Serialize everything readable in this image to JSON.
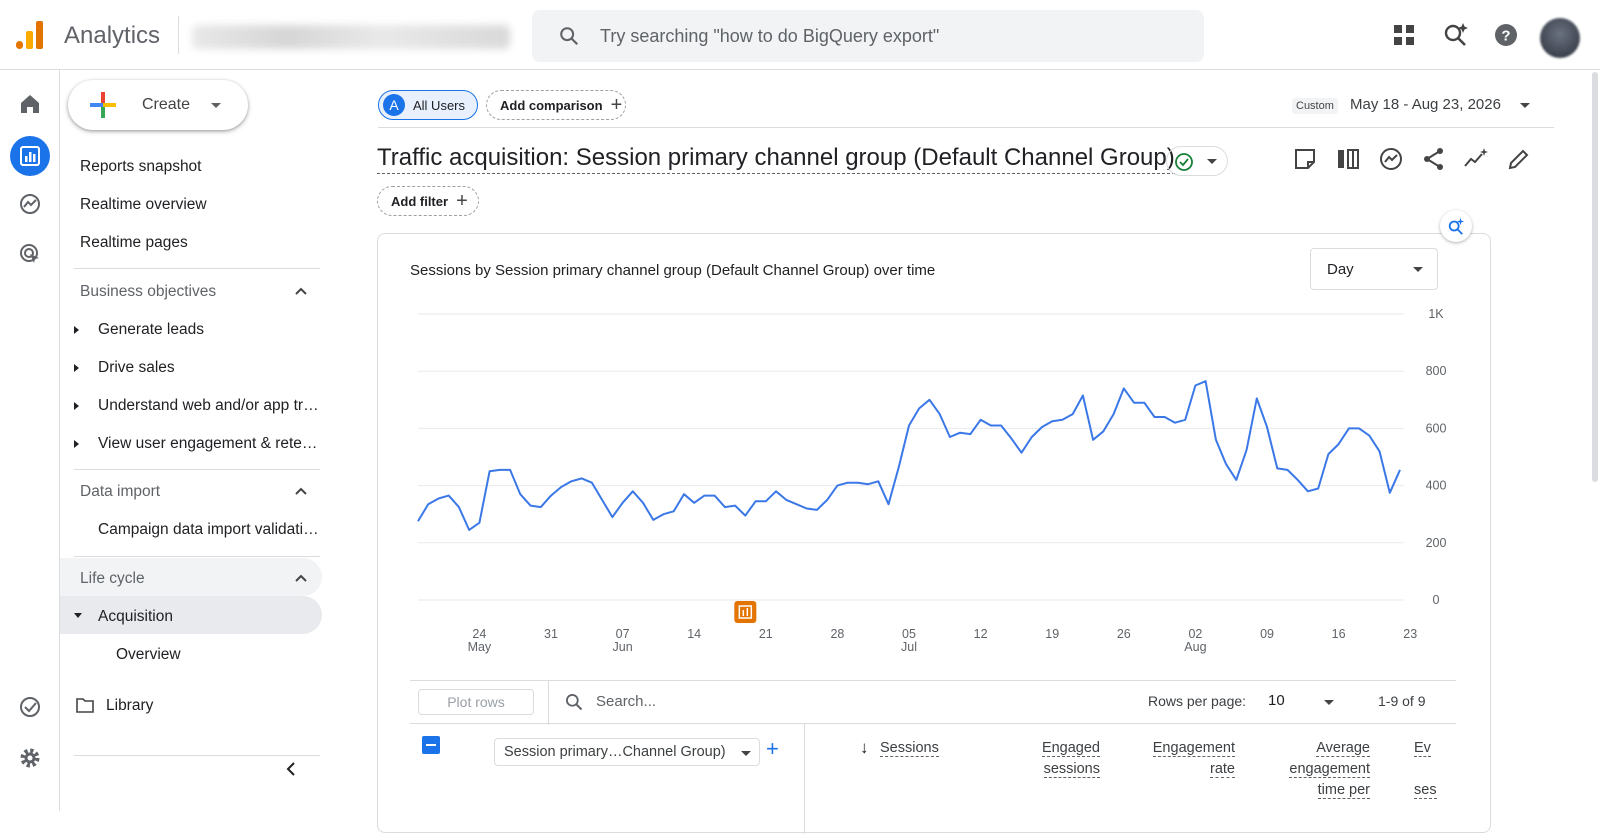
{
  "app": {
    "name": "Analytics"
  },
  "search": {
    "placeholder": "Try searching \"how to do BigQuery export\""
  },
  "nav": {
    "create_label": "Create",
    "items": [
      "Reports snapshot",
      "Realtime overview",
      "Realtime pages"
    ],
    "business_objectives": {
      "label": "Business objectives",
      "items": [
        "Generate leads",
        "Drive sales",
        "Understand web and/or app traffic",
        "View user engagement & retention"
      ]
    },
    "data_import": {
      "label": "Data import",
      "items": [
        "Campaign data import validation"
      ]
    },
    "life_cycle": {
      "label": "Life cycle",
      "acquisition": "Acquisition",
      "overview": "Overview"
    },
    "library": "Library"
  },
  "header": {
    "segment": "All Users",
    "segment_letter": "A",
    "add_comparison": "Add comparison",
    "custom_tag": "Custom",
    "date_range": "May 18 - Aug 23, 2026",
    "title": "Traffic acquisition: Session primary channel group (Default Channel Group)",
    "add_filter": "Add filter"
  },
  "colors": {
    "accent": "#1a73e8",
    "line": "#3b78e7",
    "annotation": "#e37400"
  },
  "chart_data": {
    "type": "line",
    "title": "Sessions by Session primary channel group (Default Channel Group) over time",
    "granularity": "Day",
    "ylim": [
      0,
      1000
    ],
    "y_ticks": [
      "0",
      "200",
      "400",
      "600",
      "800",
      "1K"
    ],
    "x_ticks": [
      {
        "day": "24",
        "month": "May"
      },
      {
        "day": "31",
        "month": ""
      },
      {
        "day": "07",
        "month": "Jun"
      },
      {
        "day": "14",
        "month": ""
      },
      {
        "day": "21",
        "month": ""
      },
      {
        "day": "28",
        "month": ""
      },
      {
        "day": "05",
        "month": "Jul"
      },
      {
        "day": "12",
        "month": ""
      },
      {
        "day": "19",
        "month": ""
      },
      {
        "day": "26",
        "month": ""
      },
      {
        "day": "02",
        "month": "Aug"
      },
      {
        "day": "09",
        "month": ""
      },
      {
        "day": "16",
        "month": ""
      },
      {
        "day": "23",
        "month": ""
      }
    ],
    "x_start": "2026-05-18",
    "series": [
      {
        "values": [
          275,
          335,
          355,
          365,
          325,
          245,
          270,
          450,
          455,
          455,
          370,
          330,
          325,
          365,
          395,
          415,
          425,
          410,
          350,
          290,
          340,
          380,
          340,
          280,
          300,
          310,
          370,
          340,
          365,
          365,
          325,
          330,
          295,
          345,
          345,
          380,
          350,
          335,
          320,
          315,
          350,
          400,
          410,
          410,
          405,
          415,
          335,
          465,
          610,
          670,
          700,
          650,
          570,
          585,
          580,
          630,
          610,
          610,
          565,
          515,
          570,
          605,
          625,
          630,
          650,
          715,
          560,
          590,
          650,
          740,
          690,
          690,
          640,
          640,
          620,
          630,
          750,
          765,
          560,
          475,
          420,
          525,
          705,
          605,
          460,
          455,
          420,
          380,
          390,
          510,
          545,
          600,
          600,
          575,
          520,
          375,
          455
        ]
      }
    ]
  },
  "table": {
    "plot_rows": "Plot rows",
    "search_placeholder": "Search...",
    "rows_per_page_label": "Rows per page:",
    "rows_per_page": "10",
    "pagination": "1-9 of 9",
    "dimension": "Session primary…Channel Group)",
    "columns": [
      {
        "line1": "Sessions",
        "line2": "",
        "line3": ""
      },
      {
        "line1": "Engaged",
        "line2": "sessions",
        "line3": ""
      },
      {
        "line1": "Engagement",
        "line2": "rate",
        "line3": ""
      },
      {
        "line1": "Average",
        "line2": "engagement",
        "line3": "time per"
      },
      {
        "line1": "Ev",
        "line2": "",
        "line3": "ses"
      }
    ]
  }
}
